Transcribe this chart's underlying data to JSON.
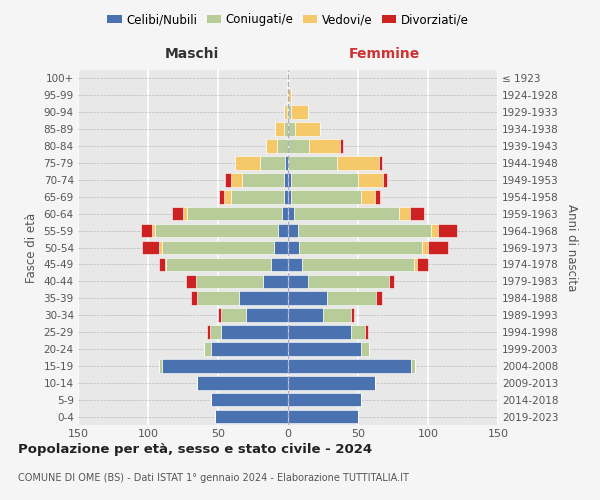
{
  "age_groups": [
    "0-4",
    "5-9",
    "10-14",
    "15-19",
    "20-24",
    "25-29",
    "30-34",
    "35-39",
    "40-44",
    "45-49",
    "50-54",
    "55-59",
    "60-64",
    "65-69",
    "70-74",
    "75-79",
    "80-84",
    "85-89",
    "90-94",
    "95-99",
    "100+"
  ],
  "birth_years": [
    "2019-2023",
    "2014-2018",
    "2009-2013",
    "2004-2008",
    "1999-2003",
    "1994-1998",
    "1989-1993",
    "1984-1988",
    "1979-1983",
    "1974-1978",
    "1969-1973",
    "1964-1968",
    "1959-1963",
    "1954-1958",
    "1949-1953",
    "1944-1948",
    "1939-1943",
    "1934-1938",
    "1929-1933",
    "1924-1928",
    "≤ 1923"
  ],
  "colors": {
    "celibi": "#4a72b0",
    "coniugati": "#b8cc9a",
    "vedovi": "#f5c96a",
    "divorziati": "#cc2222"
  },
  "maschi": {
    "celibi": [
      52,
      55,
      65,
      90,
      55,
      48,
      30,
      35,
      18,
      12,
      10,
      7,
      4,
      3,
      3,
      2,
      0,
      0,
      0,
      0,
      0
    ],
    "coniugati": [
      0,
      0,
      0,
      2,
      5,
      8,
      18,
      30,
      48,
      75,
      80,
      88,
      68,
      38,
      30,
      18,
      8,
      3,
      1,
      0,
      0
    ],
    "vedovi": [
      0,
      0,
      0,
      0,
      0,
      0,
      0,
      0,
      0,
      1,
      2,
      2,
      3,
      5,
      8,
      18,
      8,
      6,
      2,
      0,
      0
    ],
    "divorziati": [
      0,
      0,
      0,
      0,
      0,
      2,
      2,
      4,
      7,
      4,
      12,
      8,
      8,
      3,
      4,
      0,
      0,
      0,
      0,
      0,
      0
    ]
  },
  "femmine": {
    "celibi": [
      50,
      52,
      62,
      88,
      52,
      45,
      25,
      28,
      14,
      10,
      8,
      7,
      4,
      2,
      2,
      0,
      0,
      0,
      0,
      0,
      0
    ],
    "coniugati": [
      0,
      0,
      0,
      3,
      6,
      10,
      20,
      35,
      58,
      80,
      88,
      95,
      75,
      50,
      48,
      35,
      15,
      5,
      2,
      0,
      0
    ],
    "vedovi": [
      0,
      0,
      0,
      0,
      0,
      0,
      0,
      0,
      0,
      2,
      4,
      5,
      8,
      10,
      18,
      30,
      22,
      18,
      12,
      2,
      1
    ],
    "divorziati": [
      0,
      0,
      0,
      0,
      0,
      2,
      2,
      4,
      4,
      8,
      14,
      14,
      10,
      4,
      3,
      2,
      2,
      0,
      0,
      0,
      0
    ]
  },
  "title": "Popolazione per età, sesso e stato civile - 2024",
  "subtitle": "COMUNE DI OME (BS) - Dati ISTAT 1° gennaio 2024 - Elaborazione TUTTITALIA.IT",
  "xlabel_left": "Maschi",
  "xlabel_right": "Femmine",
  "ylabel_left": "Fasce di età",
  "ylabel_right": "Anni di nascita",
  "xlim": 150,
  "legend_labels": [
    "Celibi/Nubili",
    "Coniugati/e",
    "Vedovi/e",
    "Divorziati/e"
  ],
  "bg_color": "#f5f5f5",
  "plot_bg": "#e8e8e8",
  "bar_edge_color": "white",
  "center_line_color": "#aaaacc",
  "grid_color_x": "white",
  "grid_color_y": "#bbbbbb"
}
